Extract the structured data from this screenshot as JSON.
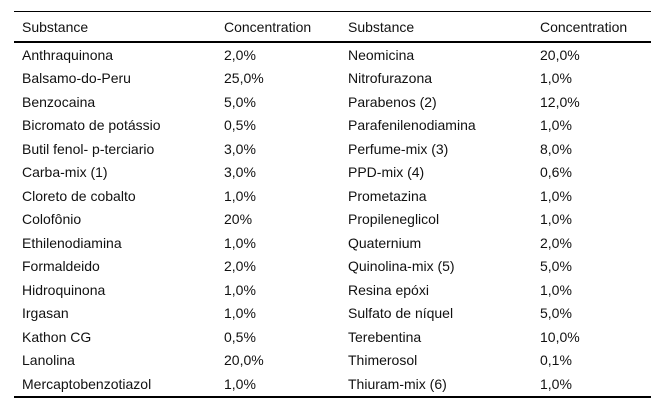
{
  "table": {
    "columns": [
      "Substance",
      "Concentration",
      "Substance",
      "Concentration"
    ],
    "rows": [
      {
        "left_substance": "Anthraquinona",
        "left_concentration": "2,0%",
        "right_substance": "Neomicina",
        "right_concentration": "20,0%"
      },
      {
        "left_substance": "Balsamo-do-Peru",
        "left_concentration": "25,0%",
        "right_substance": "Nitrofurazona",
        "right_concentration": "1,0%"
      },
      {
        "left_substance": "Benzocaina",
        "left_concentration": "5,0%",
        "right_substance": "Parabenos (2)",
        "right_concentration": "12,0%"
      },
      {
        "left_substance": "Bicromato de potássio",
        "left_concentration": "0,5%",
        "right_substance": "Parafenilenodiamina",
        "right_concentration": "1,0%"
      },
      {
        "left_substance": "Butil fenol- p-terciario",
        "left_concentration": "3,0%",
        "right_substance": "Perfume-mix (3)",
        "right_concentration": "8,0%"
      },
      {
        "left_substance": "Carba-mix (1)",
        "left_concentration": "3,0%",
        "right_substance": "PPD-mix (4)",
        "right_concentration": "0,6%"
      },
      {
        "left_substance": "Cloreto de cobalto",
        "left_concentration": "1,0%",
        "right_substance": "Prometazina",
        "right_concentration": "1,0%"
      },
      {
        "left_substance": "Colofônio",
        "left_concentration": "20%",
        "right_substance": "Propileneglicol",
        "right_concentration": "1,0%"
      },
      {
        "left_substance": "Ethilenodiamina",
        "left_concentration": "1,0%",
        "right_substance": "Quaternium",
        "right_concentration": "2,0%"
      },
      {
        "left_substance": "Formaldeido",
        "left_concentration": "2,0%",
        "right_substance": "Quinolina-mix (5)",
        "right_concentration": "5,0%"
      },
      {
        "left_substance": "Hidroquinona",
        "left_concentration": "1,0%",
        "right_substance": "Resina epóxi",
        "right_concentration": "1,0%"
      },
      {
        "left_substance": "Irgasan",
        "left_concentration": "1,0%",
        "right_substance": "Sulfato de níquel",
        "right_concentration": "5,0%"
      },
      {
        "left_substance": "Kathon CG",
        "left_concentration": "0,5%",
        "right_substance": "Terebentina",
        "right_concentration": "10,0%"
      },
      {
        "left_substance": "Lanolina",
        "left_concentration": "20,0%",
        "right_substance": "Thimerosol",
        "right_concentration": "0,1%"
      },
      {
        "left_substance": "Mercaptobenzotiazol",
        "left_concentration": "1,0%",
        "right_substance": "Thiuram-mix (6)",
        "right_concentration": "1,0%"
      }
    ]
  },
  "colors": {
    "background": "#ffffff",
    "rule": "#000000",
    "text": "#111111"
  }
}
